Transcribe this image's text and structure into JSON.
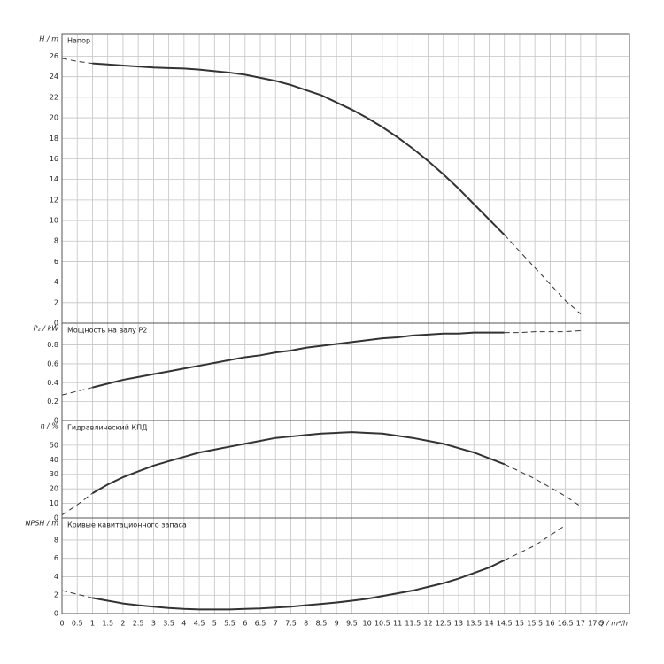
{
  "chart_data": [
    {
      "type": "line",
      "title": "Напор",
      "y_label": "H / m",
      "color": "#333333",
      "solid_range": [
        1,
        14.5
      ],
      "grid": true,
      "x": [
        0,
        0.5,
        1,
        1.5,
        2,
        2.5,
        3,
        3.5,
        4,
        4.5,
        5,
        5.5,
        6,
        6.5,
        7,
        7.5,
        8,
        8.5,
        9,
        9.5,
        10,
        10.5,
        11,
        11.5,
        12,
        12.5,
        13,
        13.5,
        14,
        14.5,
        15,
        15.5,
        16,
        16.5,
        17
      ],
      "values": [
        25.8,
        25.5,
        25.3,
        25.2,
        25.1,
        25.0,
        24.9,
        24.85,
        24.8,
        24.7,
        24.55,
        24.4,
        24.2,
        23.9,
        23.6,
        23.2,
        22.7,
        22.2,
        21.5,
        20.8,
        20.0,
        19.1,
        18.1,
        17.0,
        15.8,
        14.5,
        13.1,
        11.6,
        10.1,
        8.6,
        7.0,
        5.4,
        3.8,
        2.2,
        0.9
      ],
      "xlim": [
        0,
        18.6
      ],
      "ylim": [
        0,
        28.2
      ],
      "yticks": [
        0,
        2,
        4,
        6,
        8,
        10,
        12,
        14,
        16,
        18,
        20,
        22,
        24,
        26
      ]
    },
    {
      "type": "line",
      "title": "Мощность на валу P2",
      "y_label": "P₂ / kW",
      "color": "#333333",
      "solid_range": [
        1,
        14.5
      ],
      "grid": true,
      "x": [
        0,
        0.5,
        1,
        1.5,
        2,
        2.5,
        3,
        3.5,
        4,
        4.5,
        5,
        5.5,
        6,
        6.5,
        7,
        7.5,
        8,
        8.5,
        9,
        9.5,
        10,
        10.5,
        11,
        11.5,
        12,
        12.5,
        13,
        13.5,
        14,
        14.5,
        15,
        15.5,
        16,
        16.5,
        17
      ],
      "values": [
        0.27,
        0.31,
        0.35,
        0.39,
        0.43,
        0.46,
        0.49,
        0.52,
        0.55,
        0.58,
        0.61,
        0.64,
        0.67,
        0.69,
        0.72,
        0.74,
        0.77,
        0.79,
        0.81,
        0.83,
        0.85,
        0.87,
        0.88,
        0.9,
        0.91,
        0.92,
        0.92,
        0.93,
        0.93,
        0.93,
        0.93,
        0.94,
        0.94,
        0.94,
        0.95
      ],
      "xlim": [
        0,
        18.6
      ],
      "ylim": [
        0,
        1.03
      ],
      "yticks": [
        0,
        0.2,
        0.4,
        0.6,
        0.8
      ]
    },
    {
      "type": "line",
      "title": "Гидравлический КПД",
      "y_label": "η / %",
      "color": "#333333",
      "solid_range": [
        1,
        14.5
      ],
      "grid": true,
      "x": [
        0,
        0.5,
        1,
        1.5,
        2,
        2.5,
        3,
        3.5,
        4,
        4.5,
        5,
        5.5,
        6,
        6.5,
        7,
        7.5,
        8,
        8.5,
        9,
        9.5,
        10,
        10.5,
        11,
        11.5,
        12,
        12.5,
        13,
        13.5,
        14,
        14.5,
        15,
        15.5,
        16,
        16.5,
        17
      ],
      "values": [
        2,
        9,
        17,
        23,
        28,
        32,
        36,
        39,
        42,
        45,
        47,
        49,
        51,
        53,
        55,
        56,
        57,
        58,
        58.5,
        59,
        58.5,
        58,
        56.5,
        55,
        53,
        51,
        48,
        45,
        41,
        37,
        32,
        27,
        21,
        15,
        8
      ],
      "xlim": [
        0,
        18.6
      ],
      "ylim": [
        0,
        67
      ],
      "yticks": [
        0,
        10,
        20,
        30,
        40,
        50
      ]
    },
    {
      "type": "line",
      "title": "Кривые кавитационного запаса",
      "y_label": "NPSH / m",
      "x_label": "Q / m³/h",
      "color": "#333333",
      "solid_range": [
        1,
        14.5
      ],
      "grid": true,
      "x": [
        0,
        0.5,
        1,
        1.5,
        2,
        2.5,
        3,
        3.5,
        4,
        4.5,
        5,
        5.5,
        6,
        6.5,
        7,
        7.5,
        8,
        8.5,
        9,
        9.5,
        10,
        10.5,
        11,
        11.5,
        12,
        12.5,
        13,
        13.5,
        14,
        14.5,
        15,
        15.5,
        16,
        16.5,
        17
      ],
      "values": [
        2.5,
        2.1,
        1.7,
        1.4,
        1.1,
        0.9,
        0.75,
        0.6,
        0.5,
        0.45,
        0.45,
        0.45,
        0.5,
        0.55,
        0.65,
        0.75,
        0.9,
        1.05,
        1.2,
        1.4,
        1.6,
        1.9,
        2.2,
        2.5,
        2.9,
        3.3,
        3.8,
        4.4,
        5.0,
        5.8,
        6.6,
        7.4,
        8.5,
        9.6,
        null
      ],
      "xlim": [
        0,
        18.6
      ],
      "ylim": [
        0,
        10.4
      ],
      "yticks": [
        0,
        2,
        4,
        6,
        8
      ],
      "xticks": [
        0,
        0.5,
        1,
        1.5,
        2,
        2.5,
        3,
        3.5,
        4,
        4.5,
        5,
        5.5,
        6,
        6.5,
        7,
        7.5,
        8,
        8.5,
        9,
        9.5,
        10,
        10.5,
        11,
        11.5,
        12,
        12.5,
        13,
        13.5,
        14,
        14.5,
        15,
        15.5,
        16,
        16.5,
        17,
        17.5
      ]
    }
  ]
}
